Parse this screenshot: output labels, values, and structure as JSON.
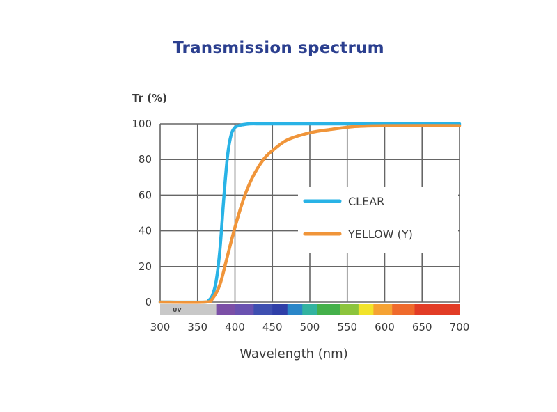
{
  "colors": {
    "title": "#2b3f8f",
    "clear": "#29b3e6",
    "yellow": "#f0953a",
    "grid": "#666666",
    "uv_band": "#c8c8c8"
  },
  "chart_data": {
    "type": "line",
    "title": "Transmission spectrum",
    "ylabel": "Tr (%)",
    "xlabel": "Wavelength (nm)",
    "xlim": [
      300,
      700
    ],
    "ylim": [
      0,
      100
    ],
    "x_ticks": [
      300,
      350,
      400,
      450,
      500,
      550,
      600,
      650,
      700
    ],
    "y_ticks": [
      0,
      20,
      40,
      60,
      80,
      100
    ],
    "grid": true,
    "legend_position": "right-center",
    "uv_label": "UV",
    "series": [
      {
        "name": "CLEAR",
        "color": "#29b3e6",
        "x": [
          300,
          360,
          365,
          370,
          375,
          380,
          385,
          390,
          395,
          400,
          405,
          410,
          420,
          440,
          500,
          700
        ],
        "y": [
          0,
          0,
          1,
          4,
          12,
          30,
          58,
          82,
          94,
          98,
          99,
          99.5,
          100,
          100,
          100,
          100
        ]
      },
      {
        "name": "YELLOW  (Y)",
        "color": "#f0953a",
        "x": [
          300,
          360,
          370,
          380,
          390,
          400,
          410,
          420,
          430,
          440,
          450,
          470,
          500,
          530,
          560,
          600,
          700
        ],
        "y": [
          0,
          0,
          2,
          10,
          26,
          42,
          56,
          67,
          75,
          81,
          85,
          91,
          95,
          97,
          98.5,
          99,
          99
        ]
      }
    ],
    "spectrum_band": [
      {
        "from": 300,
        "to": 375,
        "color": "#c8c8c8"
      },
      {
        "from": 375,
        "to": 400,
        "color": "#7b4fa6"
      },
      {
        "from": 400,
        "to": 425,
        "color": "#6a52b0"
      },
      {
        "from": 425,
        "to": 450,
        "color": "#3e4fb0"
      },
      {
        "from": 450,
        "to": 470,
        "color": "#2f3fa8"
      },
      {
        "from": 470,
        "to": 490,
        "color": "#2a86c8"
      },
      {
        "from": 490,
        "to": 510,
        "color": "#32b3a0"
      },
      {
        "from": 510,
        "to": 540,
        "color": "#44b04a"
      },
      {
        "from": 540,
        "to": 565,
        "color": "#8cc43c"
      },
      {
        "from": 565,
        "to": 585,
        "color": "#f2e32a"
      },
      {
        "from": 585,
        "to": 610,
        "color": "#f5a233"
      },
      {
        "from": 610,
        "to": 640,
        "color": "#ef6a2c"
      },
      {
        "from": 640,
        "to": 700,
        "color": "#e23c26"
      }
    ]
  }
}
